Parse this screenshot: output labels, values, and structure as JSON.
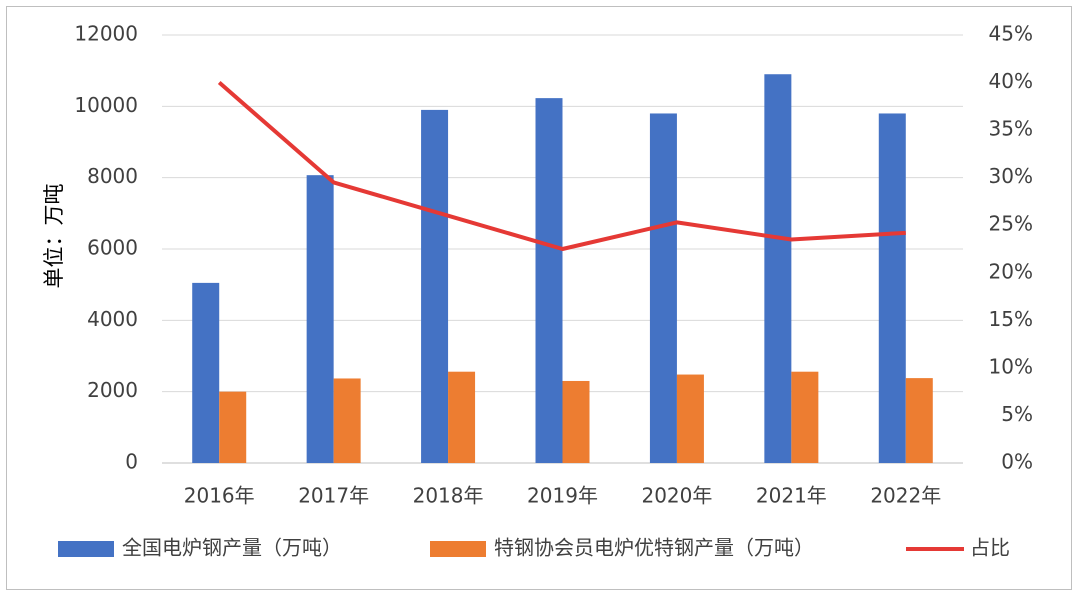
{
  "chart_data": {
    "type": "bar",
    "categories": [
      "2016年",
      "2017年",
      "2018年",
      "2019年",
      "2020年",
      "2021年",
      "2022年"
    ],
    "series": [
      {
        "name": "全国电炉钢产量（万吨）",
        "type": "bar",
        "axis": "left",
        "color": "#4472C4",
        "values": [
          5050,
          8070,
          9900,
          10230,
          9800,
          10900,
          9800
        ]
      },
      {
        "name": "特钢协会员电炉优特钢产量（万吨）",
        "type": "bar",
        "axis": "left",
        "color": "#ED7D31",
        "values": [
          2000,
          2370,
          2560,
          2300,
          2480,
          2560,
          2380
        ]
      },
      {
        "name": "占比",
        "type": "line",
        "axis": "right",
        "color": "#E53935",
        "values": [
          0.4,
          0.295,
          0.26,
          0.225,
          0.253,
          0.235,
          0.242
        ]
      }
    ],
    "ylabel": "单位：万吨",
    "ylim": [
      0,
      12000
    ],
    "y_ticks": [
      "0",
      "2000",
      "4000",
      "6000",
      "8000",
      "10000",
      "12000"
    ],
    "y2lim": [
      0,
      0.45
    ],
    "y2_ticks": [
      "0%",
      "5%",
      "10%",
      "15%",
      "20%",
      "25%",
      "30%",
      "35%",
      "40%",
      "45%"
    ],
    "grid": true,
    "legend_position": "bottom"
  }
}
